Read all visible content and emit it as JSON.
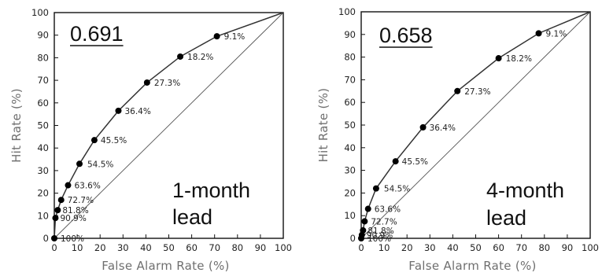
{
  "chart_data": [
    {
      "type": "line",
      "score": "0.691",
      "lead_line1": "1-month",
      "lead_line2": "lead",
      "xlabel": "False Alarm Rate (%)",
      "ylabel": "Hit Rate (%)",
      "xlim": [
        0,
        100
      ],
      "ylim": [
        0,
        100
      ],
      "xticks": [
        0,
        10,
        20,
        30,
        40,
        50,
        60,
        70,
        80,
        90,
        100
      ],
      "yticks": [
        0,
        10,
        20,
        30,
        40,
        50,
        60,
        70,
        80,
        90,
        100
      ],
      "grid": false,
      "series": [
        {
          "x": [
            0,
            0.5,
            1.5,
            3,
            6,
            11,
            17.5,
            28,
            40.5,
            55,
            71,
            100
          ],
          "y": [
            0,
            9,
            12.5,
            17,
            23.5,
            33,
            43.5,
            56.5,
            69,
            80.5,
            89.5,
            100
          ],
          "labels": [
            "100%",
            "90.9%",
            "81.8%",
            "72.7%",
            "63.6%",
            "54.5%",
            "45.5%",
            "36.4%",
            "27.3%",
            "18.2%",
            "9.1%",
            ""
          ]
        }
      ],
      "reference_line": [
        [
          0,
          0
        ],
        [
          100,
          100
        ]
      ]
    },
    {
      "type": "line",
      "score": "0.658",
      "lead_line1": "4-month",
      "lead_line2": "lead",
      "xlabel": "False Alarm Rate (%)",
      "ylabel": "Hit Rate (%)",
      "xlim": [
        0,
        100
      ],
      "ylim": [
        0,
        100
      ],
      "xticks": [
        0,
        10,
        20,
        30,
        40,
        50,
        60,
        70,
        80,
        90,
        100
      ],
      "yticks": [
        0,
        10,
        20,
        30,
        40,
        50,
        60,
        70,
        80,
        90,
        100
      ],
      "grid": false,
      "series": [
        {
          "x": [
            0,
            0.3,
            0.8,
            1.5,
            3,
            6.5,
            15,
            27,
            42,
            60,
            77.5,
            100
          ],
          "y": [
            0,
            1.5,
            3.5,
            7.5,
            13,
            22,
            34,
            49,
            65,
            79.5,
            90.5,
            100
          ],
          "labels": [
            "100%",
            "90.9%",
            "81.8%",
            "72.7%",
            "63.6%",
            "54.5%",
            "45.5%",
            "36.4%",
            "27.3%",
            "18.2%",
            "9.1%",
            ""
          ]
        }
      ],
      "reference_line": [
        [
          0,
          0
        ],
        [
          100,
          100
        ]
      ]
    }
  ]
}
